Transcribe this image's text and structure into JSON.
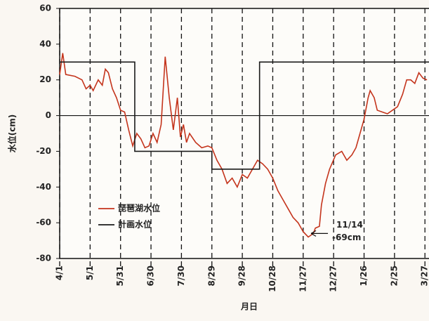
{
  "chart_data": {
    "type": "line",
    "x_label": "月日",
    "y_label": "水位(cm)",
    "xlim": [
      0,
      364
    ],
    "ylim": [
      -80,
      60
    ],
    "xticks": [
      {
        "value": 0,
        "label": "4/1"
      },
      {
        "value": 30,
        "label": "5/1"
      },
      {
        "value": 60,
        "label": "5/31"
      },
      {
        "value": 90,
        "label": "6/30"
      },
      {
        "value": 120,
        "label": "7/30"
      },
      {
        "value": 150,
        "label": "8/29"
      },
      {
        "value": 180,
        "label": "9/28"
      },
      {
        "value": 210,
        "label": "10/28"
      },
      {
        "value": 240,
        "label": "11/27"
      },
      {
        "value": 270,
        "label": "12/27"
      },
      {
        "value": 300,
        "label": "1/26"
      },
      {
        "value": 330,
        "label": "2/25"
      },
      {
        "value": 360,
        "label": "3/27"
      }
    ],
    "yticks": [
      60,
      40,
      20,
      0,
      -20,
      -40,
      -60,
      -80
    ],
    "reference_line": 0,
    "grid": true,
    "series": [
      {
        "name": "琵琶湖水位",
        "color": "#c4341c",
        "x": [
          0,
          3,
          6,
          15,
          22,
          26,
          30,
          33,
          38,
          42,
          45,
          48,
          52,
          56,
          60,
          64,
          68,
          72,
          76,
          80,
          84,
          88,
          92,
          96,
          100,
          104,
          108,
          112,
          116,
          119,
          122,
          125,
          128,
          134,
          140,
          146,
          150,
          155,
          160,
          165,
          170,
          175,
          180,
          185,
          190,
          195,
          200,
          205,
          210,
          215,
          220,
          225,
          230,
          235,
          240,
          245,
          250,
          252,
          256,
          258,
          262,
          266,
          272,
          278,
          283,
          288,
          292,
          296,
          300,
          304,
          306,
          310,
          313,
          318,
          323,
          328,
          333,
          338,
          342,
          346,
          350,
          354,
          358,
          362
        ],
        "values": [
          23,
          35,
          23,
          22,
          20,
          15,
          17,
          14,
          20,
          17,
          26,
          24,
          15,
          10,
          3,
          2,
          -8,
          -17,
          -10,
          -13,
          -18,
          -17,
          -10,
          -15,
          -5,
          33,
          10,
          -8,
          10,
          -12,
          -5,
          -15,
          -10,
          -15,
          -18,
          -17,
          -18,
          -25,
          -30,
          -38,
          -35,
          -40,
          -33,
          -35,
          -30,
          -25,
          -27,
          -30,
          -35,
          -42,
          -47,
          -52,
          -57,
          -60,
          -65,
          -68,
          -66,
          -63,
          -62,
          -50,
          -38,
          -30,
          -22,
          -20,
          -25,
          -22,
          -18,
          -10,
          -2,
          10,
          14,
          10,
          3,
          2,
          1,
          3,
          5,
          12,
          20,
          20,
          18,
          24,
          21,
          20
        ]
      },
      {
        "name": "計画水位",
        "color": "#1a1a1a",
        "x": [
          0,
          74,
          74,
          150,
          150,
          197,
          197,
          364
        ],
        "values": [
          30,
          30,
          -20,
          -20,
          -30,
          -30,
          30,
          30
        ]
      }
    ],
    "annotation": {
      "date": "11/14",
      "value": "-69cm",
      "x": 245,
      "y": -66
    }
  }
}
